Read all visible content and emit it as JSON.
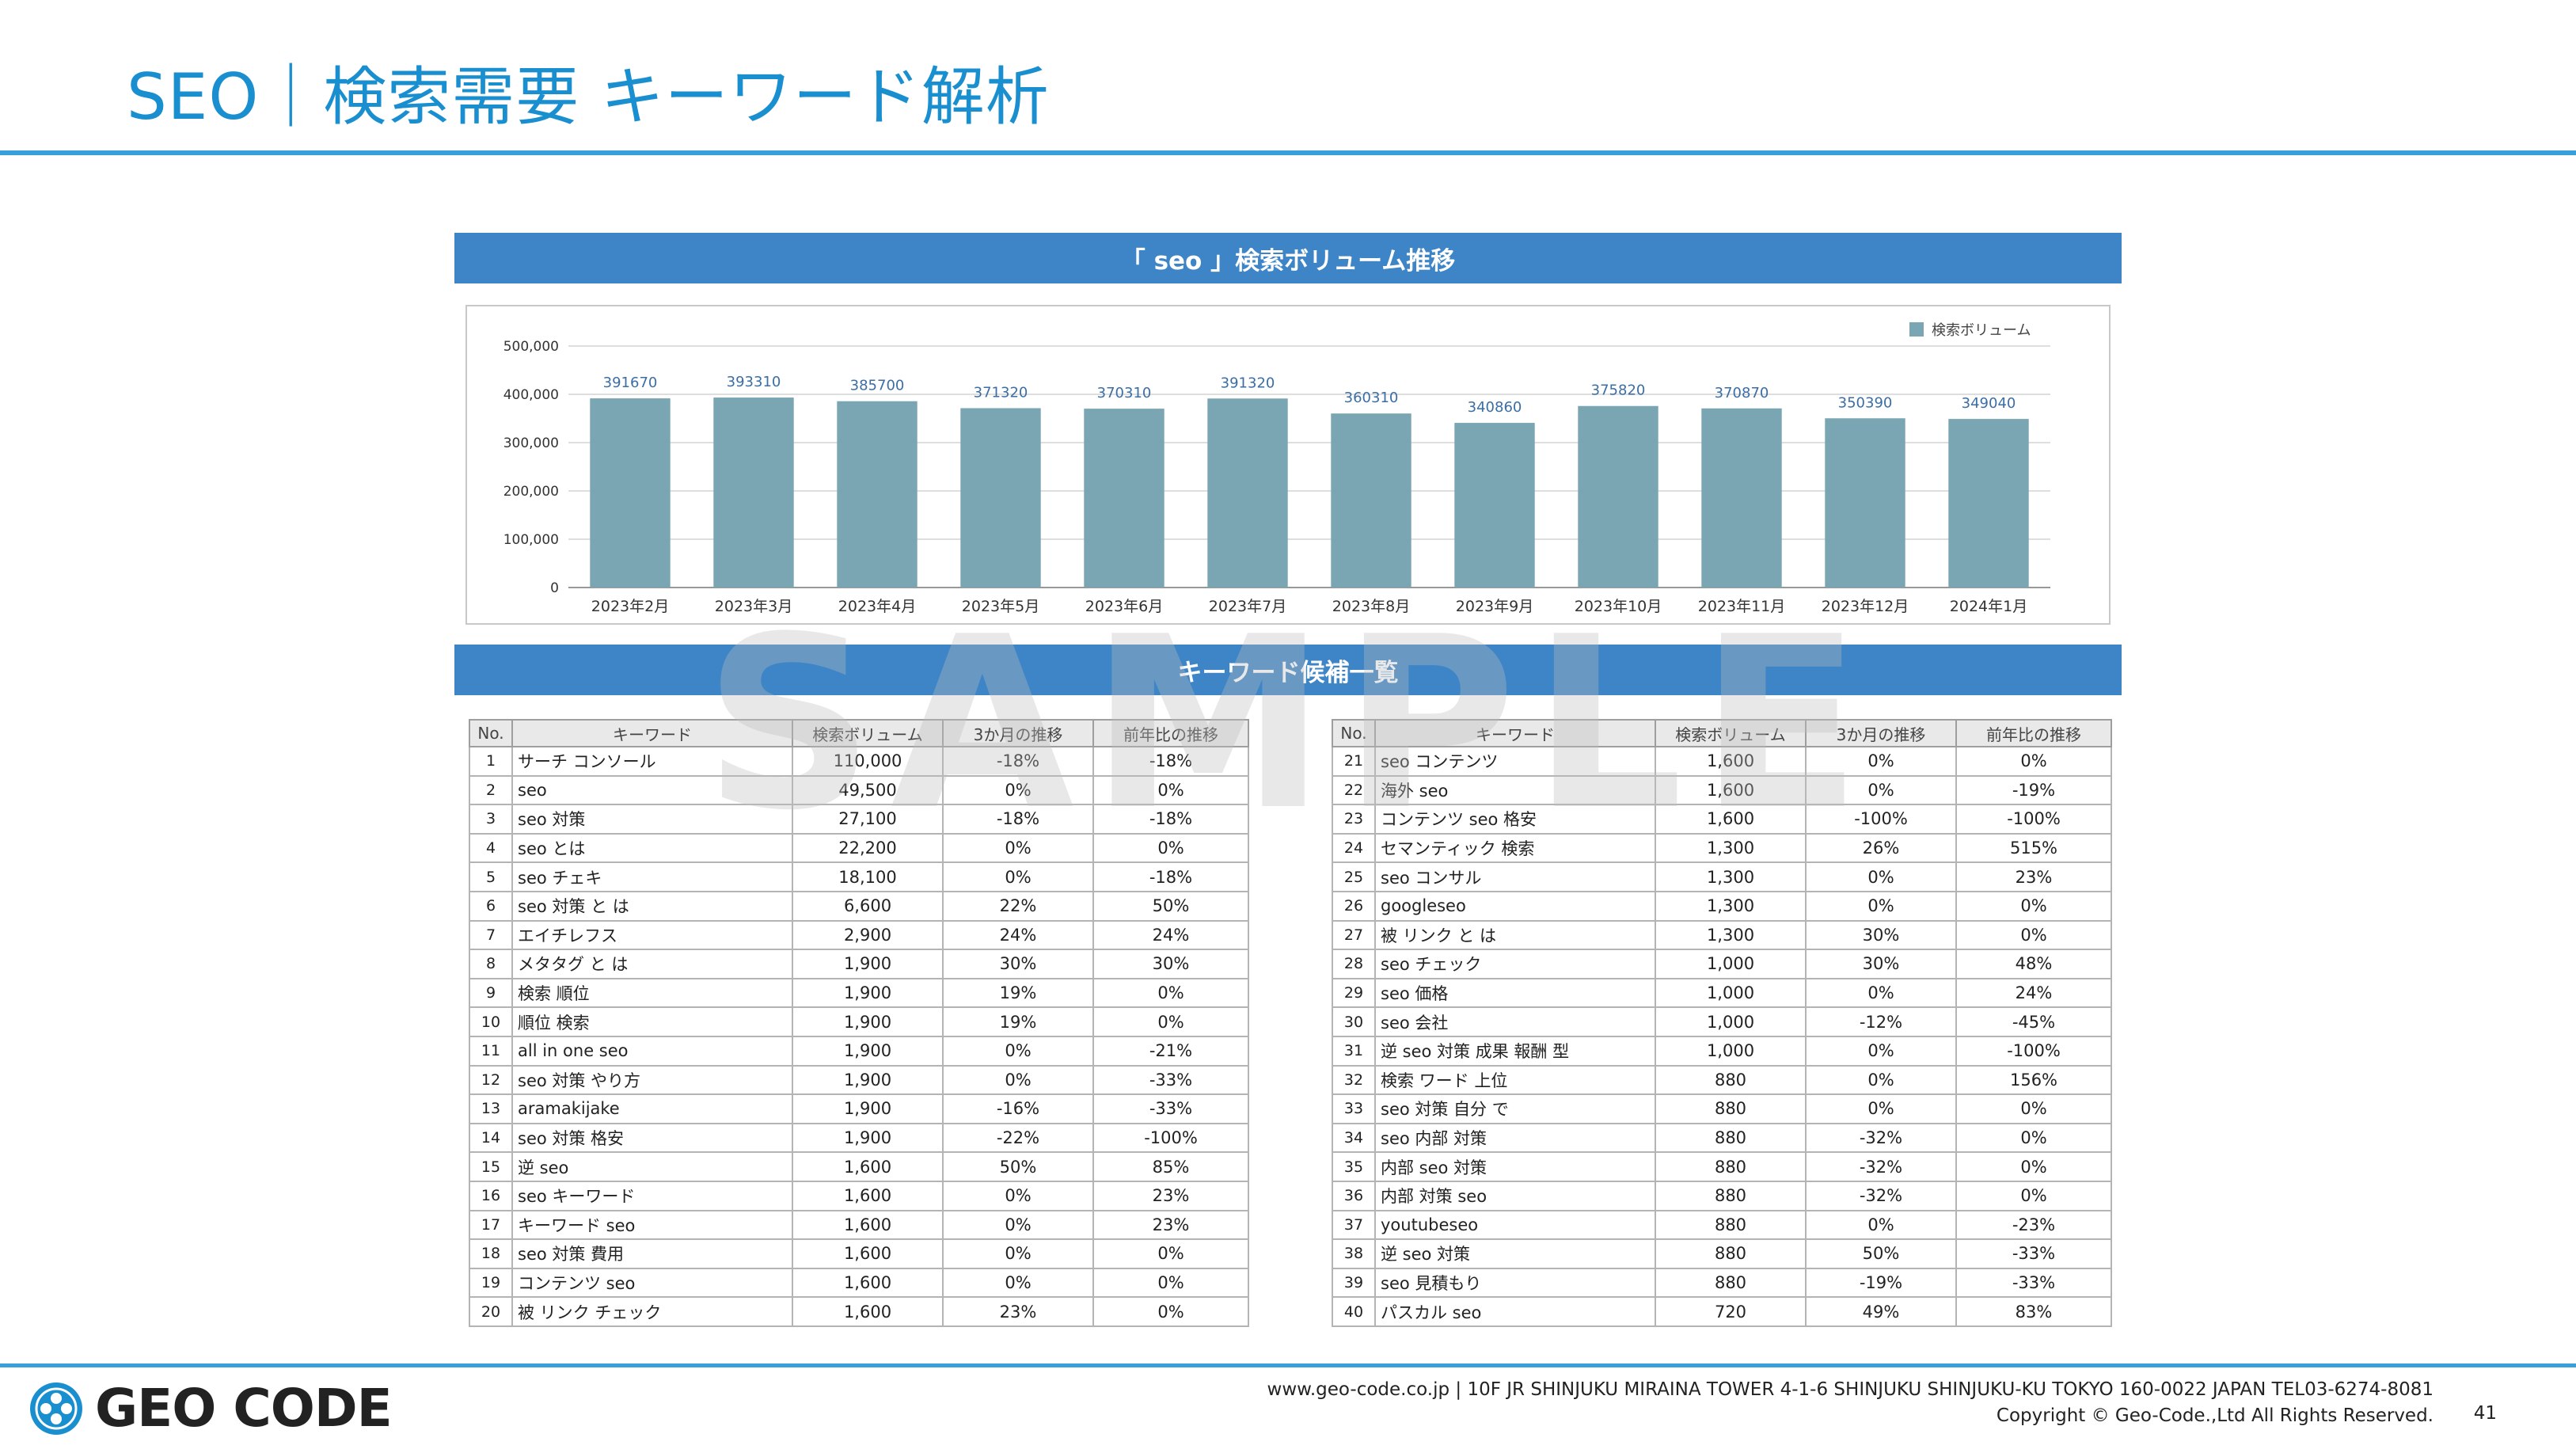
{
  "page": {
    "title": "SEO｜検索需要 キーワード解析",
    "chart_section_title": "「 seo 」検索ボリューム推移",
    "keywords_section_title": "キーワード候補一覧",
    "watermark": "SAMPLE"
  },
  "chart_data": {
    "type": "bar",
    "title": "「 seo 」検索ボリューム推移",
    "categories": [
      "2023年2月",
      "2023年3月",
      "2023年4月",
      "2023年5月",
      "2023年6月",
      "2023年7月",
      "2023年8月",
      "2023年9月",
      "2023年10月",
      "2023年11月",
      "2023年12月",
      "2024年1月"
    ],
    "series": [
      {
        "name": "検索ボリューム",
        "values": [
          391670,
          393310,
          385700,
          371320,
          370310,
          391320,
          360310,
          340860,
          375820,
          370870,
          350390,
          349040
        ],
        "color": "#79a6b2"
      }
    ],
    "y_ticks": [
      "0",
      "100,000",
      "200,000",
      "300,000",
      "400,000",
      "500,000"
    ],
    "ylim": [
      0,
      500000
    ],
    "grid": true,
    "legend_position": "top-right",
    "data_labels": true
  },
  "table": {
    "headers": [
      "No.",
      "キーワード",
      "検索ボリューム",
      "3か月の推移",
      "前年比の推移"
    ],
    "left_rows": [
      [
        "1",
        "サーチ コンソール",
        "110,000",
        "-18%",
        "-18%"
      ],
      [
        "2",
        "seo",
        "49,500",
        "0%",
        "0%"
      ],
      [
        "3",
        "seo 対策",
        "27,100",
        "-18%",
        "-18%"
      ],
      [
        "4",
        "seo とは",
        "22,200",
        "0%",
        "0%"
      ],
      [
        "5",
        "seo チェキ",
        "18,100",
        "0%",
        "-18%"
      ],
      [
        "6",
        "seo 対策 と は",
        "6,600",
        "22%",
        "50%"
      ],
      [
        "7",
        "エイチレフス",
        "2,900",
        "24%",
        "24%"
      ],
      [
        "8",
        "メタタグ と は",
        "1,900",
        "30%",
        "30%"
      ],
      [
        "9",
        "検索 順位",
        "1,900",
        "19%",
        "0%"
      ],
      [
        "10",
        "順位 検索",
        "1,900",
        "19%",
        "0%"
      ],
      [
        "11",
        "all in one seo",
        "1,900",
        "0%",
        "-21%"
      ],
      [
        "12",
        "seo 対策 やり方",
        "1,900",
        "0%",
        "-33%"
      ],
      [
        "13",
        "aramakijake",
        "1,900",
        "-16%",
        "-33%"
      ],
      [
        "14",
        "seo 対策 格安",
        "1,900",
        "-22%",
        "-100%"
      ],
      [
        "15",
        "逆 seo",
        "1,600",
        "50%",
        "85%"
      ],
      [
        "16",
        "seo キーワード",
        "1,600",
        "0%",
        "23%"
      ],
      [
        "17",
        "キーワード seo",
        "1,600",
        "0%",
        "23%"
      ],
      [
        "18",
        "seo 対策 費用",
        "1,600",
        "0%",
        "0%"
      ],
      [
        "19",
        "コンテンツ seo",
        "1,600",
        "0%",
        "0%"
      ],
      [
        "20",
        "被 リンク チェック",
        "1,600",
        "23%",
        "0%"
      ]
    ],
    "right_rows": [
      [
        "21",
        "seo コンテンツ",
        "1,600",
        "0%",
        "0%"
      ],
      [
        "22",
        "海外 seo",
        "1,600",
        "0%",
        "-19%"
      ],
      [
        "23",
        "コンテンツ seo 格安",
        "1,600",
        "-100%",
        "-100%"
      ],
      [
        "24",
        "セマンティック 検索",
        "1,300",
        "26%",
        "515%"
      ],
      [
        "25",
        "seo コンサル",
        "1,300",
        "0%",
        "23%"
      ],
      [
        "26",
        "googleseo",
        "1,300",
        "0%",
        "0%"
      ],
      [
        "27",
        "被 リンク と は",
        "1,300",
        "30%",
        "0%"
      ],
      [
        "28",
        "seo チェック",
        "1,000",
        "30%",
        "48%"
      ],
      [
        "29",
        "seo 価格",
        "1,000",
        "0%",
        "24%"
      ],
      [
        "30",
        "seo 会社",
        "1,000",
        "-12%",
        "-45%"
      ],
      [
        "31",
        "逆 seo 対策 成果 報酬 型",
        "1,000",
        "0%",
        "-100%"
      ],
      [
        "32",
        "検索 ワード 上位",
        "880",
        "0%",
        "156%"
      ],
      [
        "33",
        "seo 対策 自分 で",
        "880",
        "0%",
        "0%"
      ],
      [
        "34",
        "seo 内部 対策",
        "880",
        "-32%",
        "0%"
      ],
      [
        "35",
        "内部 seo 対策",
        "880",
        "-32%",
        "0%"
      ],
      [
        "36",
        "内部 対策 seo",
        "880",
        "-32%",
        "0%"
      ],
      [
        "37",
        "youtubeseo",
        "880",
        "0%",
        "-23%"
      ],
      [
        "38",
        "逆 seo 対策",
        "880",
        "50%",
        "-33%"
      ],
      [
        "39",
        "seo 見積もり",
        "880",
        "-19%",
        "-33%"
      ],
      [
        "40",
        "パスカル seo",
        "720",
        "49%",
        "83%"
      ]
    ]
  },
  "footer": {
    "logo_text": "GEO CODE",
    "logo_icon": "crest-icon",
    "address": "www.geo-code.co.jp  |  10F JR SHINJUKU MIRAINA TOWER 4-1-6 SHINJUKU SHINJUKU-KU TOKYO 160-0022  JAPAN  TEL03-6274-8081",
    "copyright": "Copyright © Geo-Code.,Ltd All Rights Reserved.",
    "page_number": "41"
  }
}
